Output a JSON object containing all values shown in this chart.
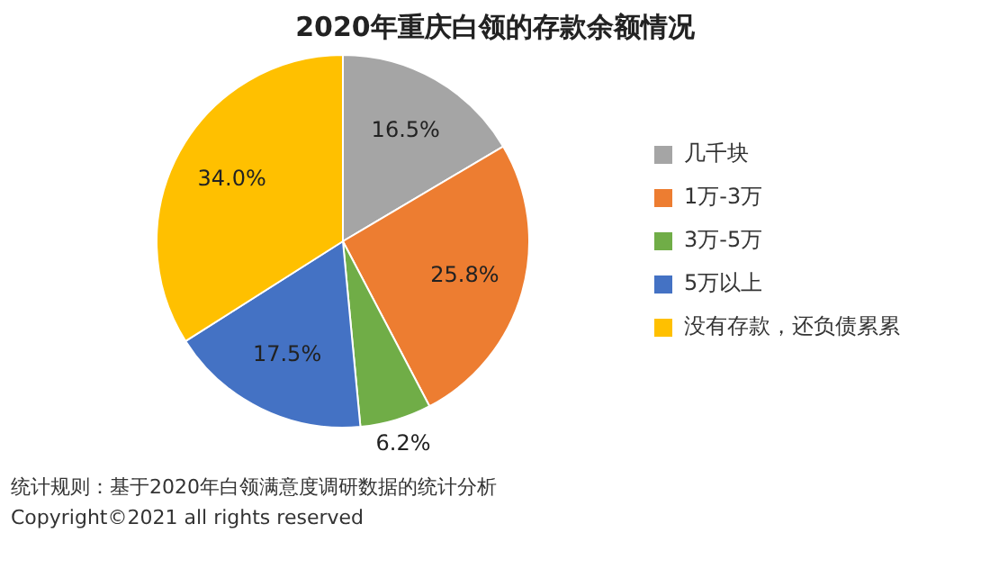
{
  "chart_data": {
    "type": "pie",
    "title": "2020年重庆白领的存款余额情况",
    "categories": [
      "几千块",
      "1万-3万",
      "3万-5万",
      "5万以上",
      "没有存款，还负债累累"
    ],
    "values": [
      16.5,
      25.8,
      6.2,
      17.5,
      34.0
    ],
    "colors": [
      "#a5a5a5",
      "#ed7d31",
      "#70ad47",
      "#4472c4",
      "#ffc000"
    ],
    "value_labels": [
      "16.5%",
      "25.8%",
      "6.2%",
      "17.5%",
      "34.0%"
    ],
    "legend": "right",
    "annotations": [
      "统计规则：基于2020年白领满意度调研数据的统计分析",
      "Copyright©2021 all rights reserved"
    ]
  }
}
